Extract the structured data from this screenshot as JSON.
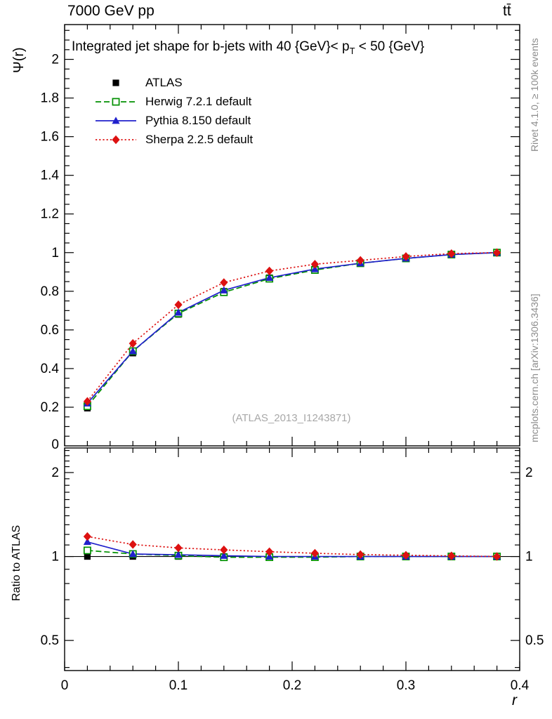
{
  "header": {
    "left": "7000 GeV pp",
    "right": "tt̄"
  },
  "title": {
    "pre": "Integrated jet shape for b-jets with 40 {GeV}< p",
    "sub": "T",
    "post": " < 50 {GeV}"
  },
  "axes": {
    "y_main": "Ψ(r)",
    "y_ratio": "Ratio to ATLAS",
    "x": "r"
  },
  "side": {
    "top": "Rivet 4.1.0, ≥ 100k events",
    "bottom": "mcplots.cern.ch [arXiv:1306.3436]"
  },
  "watermark": "(ATLAS_2013_I1243871)",
  "chart_data": {
    "type": "line",
    "title": "Integrated jet shape for b-jets with 40 {GeV}< p_T < 50 {GeV}",
    "xlabel": "r",
    "ylabel": "Ψ(r)",
    "ratio_label": "Ratio to ATLAS",
    "xlim": [
      0,
      0.4
    ],
    "ylim": [
      0,
      2.18
    ],
    "ratio_ylim": [
      0.39,
      2.45
    ],
    "ratio_log": true,
    "grid": false,
    "legend_position": "top-left-inside",
    "x": [
      0.02,
      0.06,
      0.1,
      0.14,
      0.18,
      0.22,
      0.26,
      0.3,
      0.34,
      0.38
    ],
    "series": [
      {
        "name": "ATLAS",
        "color": "#000000",
        "marker": "square",
        "line": "none",
        "values": [
          0.195,
          0.48,
          0.68,
          0.8,
          0.87,
          0.915,
          0.945,
          0.97,
          0.99,
          1.0
        ]
      },
      {
        "name": "Herwig 7.2.1 default",
        "color": "#009000",
        "marker": "square-open",
        "line": "dashed",
        "values": [
          0.205,
          0.49,
          0.685,
          0.795,
          0.865,
          0.91,
          0.945,
          0.97,
          0.99,
          1.0
        ]
      },
      {
        "name": "Pythia 8.150 default",
        "color": "#2020cc",
        "marker": "triangle",
        "line": "solid",
        "values": [
          0.22,
          0.49,
          0.69,
          0.805,
          0.87,
          0.915,
          0.945,
          0.97,
          0.99,
          1.0
        ]
      },
      {
        "name": "Sherpa 2.2.5 default",
        "color": "#dd1111",
        "marker": "diamond",
        "line": "dotted",
        "values": [
          0.23,
          0.53,
          0.73,
          0.845,
          0.905,
          0.94,
          0.96,
          0.98,
          0.995,
          1.0
        ]
      }
    ],
    "ratio_reference": "ATLAS",
    "ticks": {
      "x_major": [
        0,
        0.1,
        0.2,
        0.3,
        0.4
      ],
      "x_minor_step": 0.02,
      "y_major_step": 0.2,
      "y_minor_step": 0.05,
      "y_zero_label": "0",
      "ratio_major": [
        0.5,
        1,
        2
      ],
      "ratio_minor": [
        0.4,
        0.6,
        0.7,
        0.8,
        0.9,
        1.1,
        1.2,
        1.3,
        1.4,
        1.5,
        1.6,
        1.7,
        1.8,
        1.9,
        2.1,
        2.2,
        2.3,
        2.4
      ]
    }
  }
}
